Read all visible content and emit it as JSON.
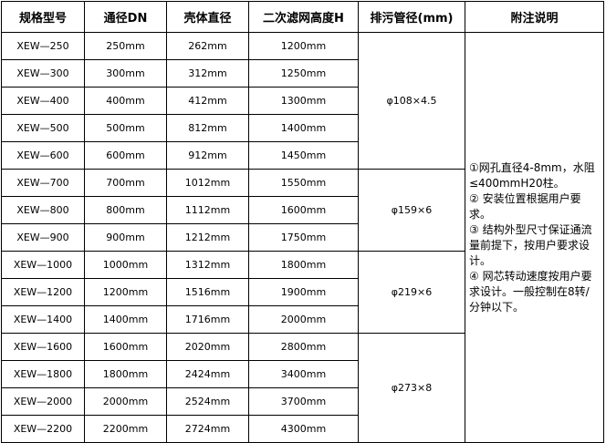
{
  "headers": [
    "规格型号",
    "通径DN",
    "壳体直径",
    "二次滤网高度H",
    "排污管径(mm)",
    "附注说明"
  ],
  "rows": [
    [
      "XEW—250",
      "250mm",
      "262mm",
      "1200mm"
    ],
    [
      "XEW—300",
      "300mm",
      "312mm",
      "1250mm"
    ],
    [
      "XEW—400",
      "400mm",
      "412mm",
      "1300mm"
    ],
    [
      "XEW—500",
      "500mm",
      "812mm",
      "1400mm"
    ],
    [
      "XEW—600",
      "600mm",
      "912mm",
      "1450mm"
    ],
    [
      "XEW—700",
      "700mm",
      "1012mm",
      "1550mm"
    ],
    [
      "XEW—800",
      "800mm",
      "1112mm",
      "1600mm"
    ],
    [
      "XEW—900",
      "900mm",
      "1212mm",
      "1750mm"
    ],
    [
      "XEW—1000",
      "1000mm",
      "1312mm",
      "1800mm"
    ],
    [
      "XEW—1200",
      "1200mm",
      "1516mm",
      "1900mm"
    ],
    [
      "XEW—1400",
      "1400mm",
      "1716mm",
      "2000mm"
    ],
    [
      "XEW—1600",
      "1600mm",
      "2020mm",
      "2800mm"
    ],
    [
      "XEW—1800",
      "1800mm",
      "2424mm",
      "3400mm"
    ],
    [
      "XEW—2000",
      "2000mm",
      "2524mm",
      "3700mm"
    ],
    [
      "XEW—2200",
      "2200mm",
      "2724mm",
      "4300mm"
    ]
  ],
  "pipe_groups": [
    {
      "label": "φ108×4.5",
      "span": 5
    },
    {
      "label": "φ159×6",
      "span": 3
    },
    {
      "label": "φ219×6",
      "span": 3
    },
    {
      "label": "φ273×8",
      "span": 4
    }
  ],
  "notes": [
    "①网孔直径4-8mm，水阻≤400mmH20柱。",
    "② 安装位置根据用户要求。",
    "③ 结构外型尺寸保证通流量前提下，按用户要求设计。",
    "④ 网芯转动速度按用户要求设计。一般控制在8转/分钟以下。"
  ]
}
